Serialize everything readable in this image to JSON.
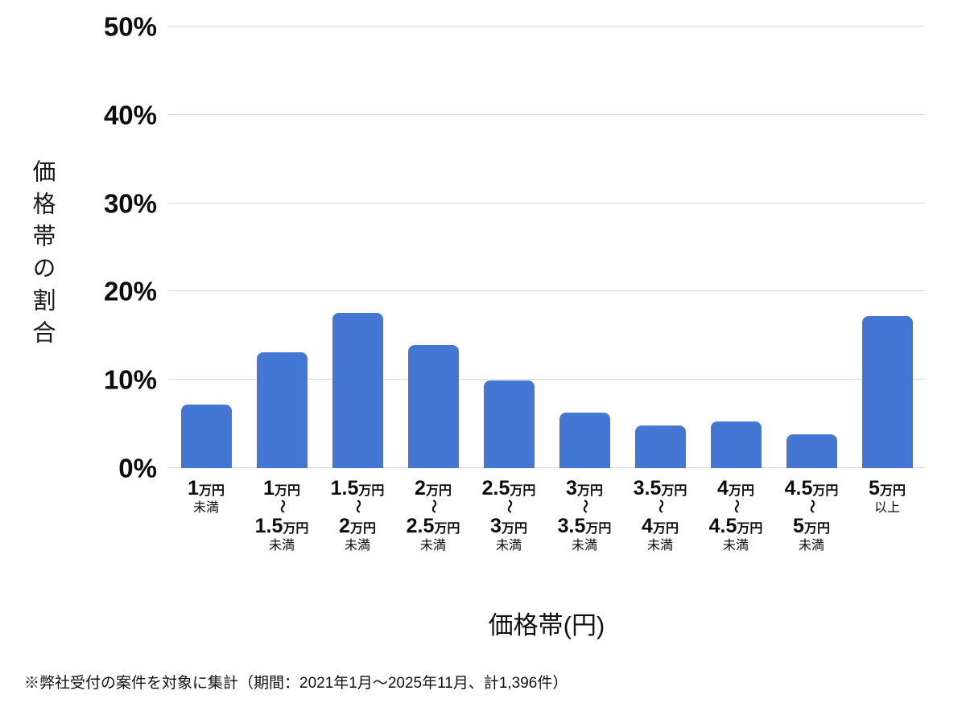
{
  "chart_data": {
    "type": "bar",
    "title": "",
    "xlabel": "価格帯(円)",
    "ylabel": "価格帯の割合",
    "ylim": [
      0,
      50
    ],
    "y_tick_labels": [
      "0%",
      "10%",
      "20%",
      "30%",
      "40%",
      "50%"
    ],
    "grid": true,
    "legend": "none",
    "bar_color": "#4377d3",
    "gridline_color": "#d9d9d9",
    "categories": [
      "1万円未満",
      "1万円〜1.5万円未満",
      "1.5万円〜2万円未満",
      "2万円〜2.5万円未満",
      "2.5万円〜3万円未満",
      "3万円〜3.5万円未満",
      "3.5万円〜4万円未満",
      "4万円〜4.5万円未満",
      "4.5万円〜5万円未満",
      "5万円以上"
    ],
    "values": [
      7.2,
      13.1,
      17.6,
      13.9,
      9.9,
      6.3,
      4.8,
      5.3,
      3.8,
      17.2
    ],
    "tick_label_parts": [
      {
        "top_num": "1",
        "top_unit": "万円",
        "tail": "未満"
      },
      {
        "top_num": "1",
        "top_unit": "万円",
        "mid": "〜",
        "bottom_num": "1.5",
        "bottom_unit": "万円",
        "tail": "未満"
      },
      {
        "top_num": "1.5",
        "top_unit": "万円",
        "mid": "〜",
        "bottom_num": "2",
        "bottom_unit": "万円",
        "tail": "未満"
      },
      {
        "top_num": "2",
        "top_unit": "万円",
        "mid": "〜",
        "bottom_num": "2.5",
        "bottom_unit": "万円",
        "tail": "未満"
      },
      {
        "top_num": "2.5",
        "top_unit": "万円",
        "mid": "〜",
        "bottom_num": "3",
        "bottom_unit": "万円",
        "tail": "未満"
      },
      {
        "top_num": "3",
        "top_unit": "万円",
        "mid": "〜",
        "bottom_num": "3.5",
        "bottom_unit": "万円",
        "tail": "未満"
      },
      {
        "top_num": "3.5",
        "top_unit": "万円",
        "mid": "〜",
        "bottom_num": "4",
        "bottom_unit": "万円",
        "tail": "未満"
      },
      {
        "top_num": "4",
        "top_unit": "万円",
        "mid": "〜",
        "bottom_num": "4.5",
        "bottom_unit": "万円",
        "tail": "未満"
      },
      {
        "top_num": "4.5",
        "top_unit": "万円",
        "mid": "〜",
        "bottom_num": "5",
        "bottom_unit": "万円",
        "tail": "未満"
      },
      {
        "top_num": "5",
        "top_unit": "万円",
        "tail": "以上"
      }
    ],
    "footnote": "※弊社受付の案件を対象に集計（期間：2021年1月～2025年11月、計1,396件）"
  }
}
